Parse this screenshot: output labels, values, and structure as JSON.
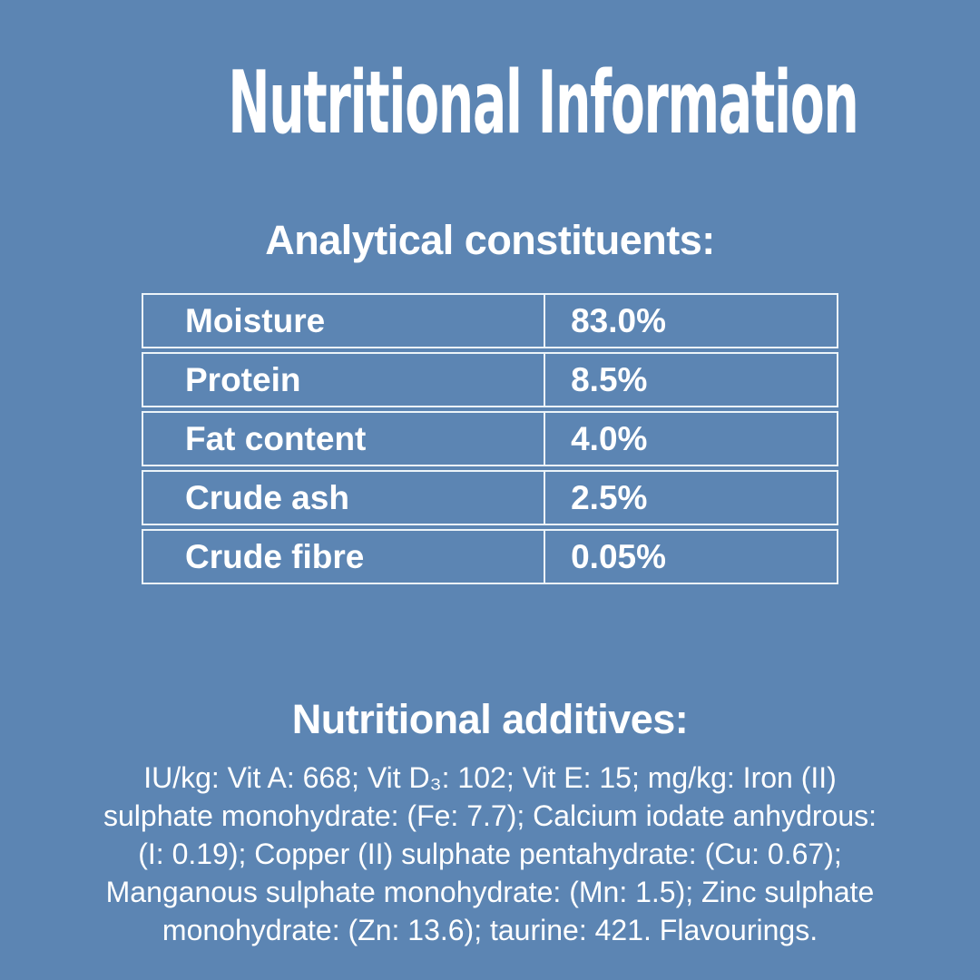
{
  "page": {
    "title": "Nutritional Information",
    "colors": {
      "background": "#5c85b3",
      "text": "#ffffff",
      "table_border": "#ecf4f9"
    }
  },
  "analytical": {
    "heading": "Analytical constituents:",
    "table": {
      "rows": [
        {
          "label": "Moisture",
          "value": "83.0%"
        },
        {
          "label": "Protein",
          "value": "8.5%"
        },
        {
          "label": "Fat content",
          "value": "4.0%"
        },
        {
          "label": "Crude ash",
          "value": "2.5%"
        },
        {
          "label": "Crude fibre",
          "value": "0.05%"
        }
      ]
    }
  },
  "additives": {
    "heading": "Nutritional additives:",
    "full_text": "IU/kg: Vit A: 668; Vit D₃: 102; Vit E: 15; mg/kg: Iron (II) sulphate monohydrate: (Fe: 7.7); Calcium iodate anhydrous: (I: 0.19); Copper (II) sulphate pentahydrate: (Cu: 0.67); Manganous sulphate monohydrate: (Mn: 1.5); Zinc sulphate monohydrate: (Zn: 13.6); taurine: 421. Flavourings.",
    "lines": [
      "IU/kg: Vit A: 668; Vit D₃: 102; Vit E: 15; mg/kg: Iron (II)",
      "sulphate monohydrate: (Fe: 7.7); Calcium iodate anhydrous:",
      "(I: 0.19); Copper (II) sulphate pentahydrate: (Cu: 0.67);",
      "Manganous sulphate monohydrate: (Mn: 1.5); Zinc sulphate",
      "monohydrate: (Zn: 13.6); taurine: 421. Flavourings."
    ]
  }
}
